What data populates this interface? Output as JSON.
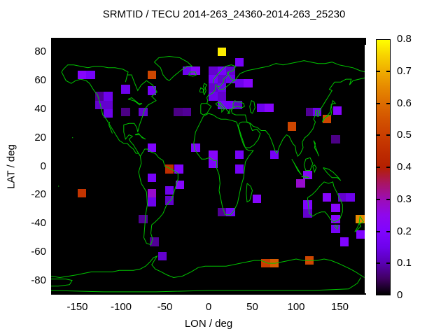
{
  "title": "SRMTID / TECU 2014-263_24360-2014-263_25230",
  "x_axis": {
    "label": "LON / deg",
    "tick_labels": [
      "-150",
      "-100",
      "-50",
      "0",
      "50",
      "100",
      "150"
    ],
    "tick_values": [
      -150,
      -100,
      -50,
      0,
      50,
      100,
      150
    ],
    "range": [
      -180,
      180
    ]
  },
  "y_axis": {
    "label": "LAT / deg",
    "tick_labels": [
      "-80",
      "-60",
      "-40",
      "-20",
      "0",
      "20",
      "40",
      "60",
      "80"
    ],
    "tick_values": [
      -80,
      -60,
      -40,
      -20,
      0,
      20,
      40,
      60,
      80
    ],
    "range": [
      -90,
      90
    ]
  },
  "colorbar": {
    "tick_labels": [
      "0",
      "0.1",
      "0.2",
      "0.3",
      "0.4",
      "0.5",
      "0.6",
      "0.7",
      "0.8"
    ],
    "tick_values": [
      0,
      0.1,
      0.2,
      0.3,
      0.4,
      0.5,
      0.6,
      0.7,
      0.8
    ],
    "min": 0,
    "max": 0.8,
    "palette": "gnuplot pm3d default (black-violet-red-orange-yellow)"
  },
  "map": {
    "background_color": "#000000",
    "coastline_color": "#00c400",
    "antimeridian_line_color": "#ffffff"
  },
  "chart_data": {
    "type": "heatmap",
    "title": "SRMTID / TECU 2014-263_24360-2014-263_25230",
    "xlabel": "LON / deg",
    "ylabel": "LAT / deg",
    "xlim": [
      -180,
      180
    ],
    "ylim": [
      -90,
      90
    ],
    "value_unit": "TECU",
    "value_range": [
      0,
      0.8
    ],
    "grid": false,
    "legend_position": "right-colorbar",
    "cell_size_deg": {
      "lon": 10,
      "lat": 6
    },
    "cells": [
      [
        -145,
        64,
        0.22
      ],
      [
        -135,
        64,
        0.17
      ],
      [
        -65,
        64,
        0.52
      ],
      [
        -95,
        54,
        0.15
      ],
      [
        -65,
        53,
        0.17
      ],
      [
        -125,
        49,
        0.08
      ],
      [
        -115,
        49,
        0.15
      ],
      [
        -125,
        43,
        0.12
      ],
      [
        -115,
        43,
        0.12
      ],
      [
        -115,
        37,
        0.15
      ],
      [
        -95,
        38,
        0.07
      ],
      [
        -75,
        38,
        0.12
      ],
      [
        -25,
        67,
        0.15
      ],
      [
        -15,
        67,
        0.22
      ],
      [
        -35,
        38,
        0.07
      ],
      [
        -25,
        38,
        0.08
      ],
      [
        15,
        80,
        0.78
      ],
      [
        35,
        73,
        0.17
      ],
      [
        5,
        67,
        0.12
      ],
      [
        15,
        67,
        0.17
      ],
      [
        25,
        67,
        0.12
      ],
      [
        5,
        61,
        0.17
      ],
      [
        15,
        61,
        0.12
      ],
      [
        25,
        61,
        0.15
      ],
      [
        35,
        58,
        0.15
      ],
      [
        45,
        58,
        0.22
      ],
      [
        5,
        55,
        0.12
      ],
      [
        15,
        55,
        0.15
      ],
      [
        5,
        49,
        0.15
      ],
      [
        15,
        49,
        0.12
      ],
      [
        15,
        43,
        0.17
      ],
      [
        25,
        43,
        0.17
      ],
      [
        33,
        43,
        0.12
      ],
      [
        60,
        41,
        0.15
      ],
      [
        69,
        41,
        0.22
      ],
      [
        95,
        28,
        0.52
      ],
      [
        116,
        38,
        0.08
      ],
      [
        124,
        38,
        0.15
      ],
      [
        135,
        33,
        0.52
      ],
      [
        147,
        39,
        0.22
      ],
      [
        145,
        19,
        0.07
      ],
      [
        75,
        8,
        0.17
      ],
      [
        113,
        -6,
        0.22
      ],
      [
        105,
        -12,
        0.28
      ],
      [
        -15,
        13,
        0.2
      ],
      [
        5,
        8,
        0.22
      ],
      [
        5,
        2,
        0.2
      ],
      [
        35,
        8,
        0.17
      ],
      [
        35,
        -2,
        0.17
      ],
      [
        55,
        -23,
        0.22
      ],
      [
        15,
        -32,
        0.08
      ],
      [
        25,
        -32,
        0.17
      ],
      [
        -65,
        13,
        0.2
      ],
      [
        -45,
        -2,
        0.45
      ],
      [
        -34,
        -2,
        0.2
      ],
      [
        -65,
        -8,
        0.17
      ],
      [
        -33,
        -13,
        0.22
      ],
      [
        -65,
        -19,
        0.28
      ],
      [
        -65,
        -25,
        0.15
      ],
      [
        -45,
        -17,
        0.15
      ],
      [
        -45,
        -24,
        0.12
      ],
      [
        -75,
        -37,
        0.08
      ],
      [
        -62,
        -53,
        0.08
      ],
      [
        -53,
        -63,
        0.12
      ],
      [
        -145,
        -19,
        0.47
      ],
      [
        135,
        -22,
        0.22
      ],
      [
        153,
        -22,
        0.12
      ],
      [
        162,
        -22,
        0.15
      ],
      [
        145,
        -29,
        0.22
      ],
      [
        113,
        -27,
        0.2
      ],
      [
        113,
        -33,
        0.12
      ],
      [
        145,
        -37,
        0.22
      ],
      [
        145,
        -44,
        0.17
      ],
      [
        173,
        -37,
        0.65
      ],
      [
        174,
        -48,
        0.2
      ],
      [
        155,
        -53,
        0.2
      ],
      [
        65,
        -68,
        0.5
      ],
      [
        75,
        -68,
        0.57
      ],
      [
        115,
        -66,
        0.52
      ]
    ]
  }
}
